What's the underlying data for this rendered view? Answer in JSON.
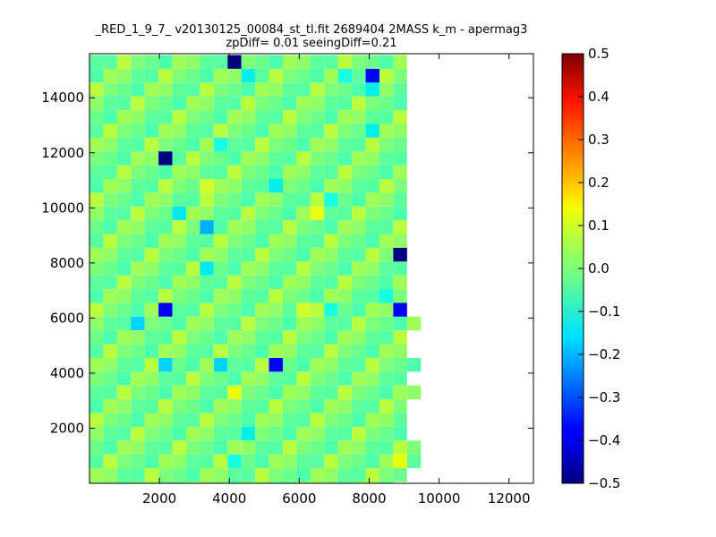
{
  "chart_data": {
    "type": "heatmap",
    "title_line1": "_RED_1_9_7_ v20130125_00084_st_tl.fit 2689404 2MASS k_m - apermag3",
    "title_line2": "zpDiff= 0.01 seeingDiff=0.21",
    "xlabel": "",
    "ylabel": "",
    "xlim": [
      0,
      12700
    ],
    "ylim": [
      0,
      15600
    ],
    "x_ticks": [
      2000,
      4000,
      6000,
      8000,
      10000,
      12000
    ],
    "y_ticks": [
      2000,
      4000,
      6000,
      8000,
      10000,
      12000,
      14000
    ],
    "colorbar": {
      "range": [
        -0.5,
        0.5
      ],
      "ticks": [
        "0.5",
        "0.4",
        "0.3",
        "0.2",
        "0.1",
        "0.0",
        "−0.1",
        "−0.2",
        "−0.3",
        "−0.4",
        "−0.5"
      ],
      "colormap": "jet"
    },
    "grid": {
      "x_start": 0,
      "x_step": 395,
      "y_start": 15550,
      "y_step": -500,
      "rows": [
        "..........V............",
        "...........4......8.l..",
        "....................4..",
        ".......................",
        ".......................",
        "....................4..",
        ".........8.............",
        ".....D.................",
        ".......................",
        "........7....4.........",
        ".................8.....",
        "......3.........9......",
        "........1..............",
        ".......................",
        "......................V",
        "........3..............",
        ".......................",
        ".....................8.",
        ".....L.........7.8....l",
        "...2....................",
        ".......................",
        ".......................",
        ".....2...2...l..........",
        ".......................",
        "..........9.............",
        ".......................",
        ".......................",
        "...........4...........",
        "........................",
        "..........8...........9.",
        ".......................",
        "......................"
      ]
    }
  }
}
